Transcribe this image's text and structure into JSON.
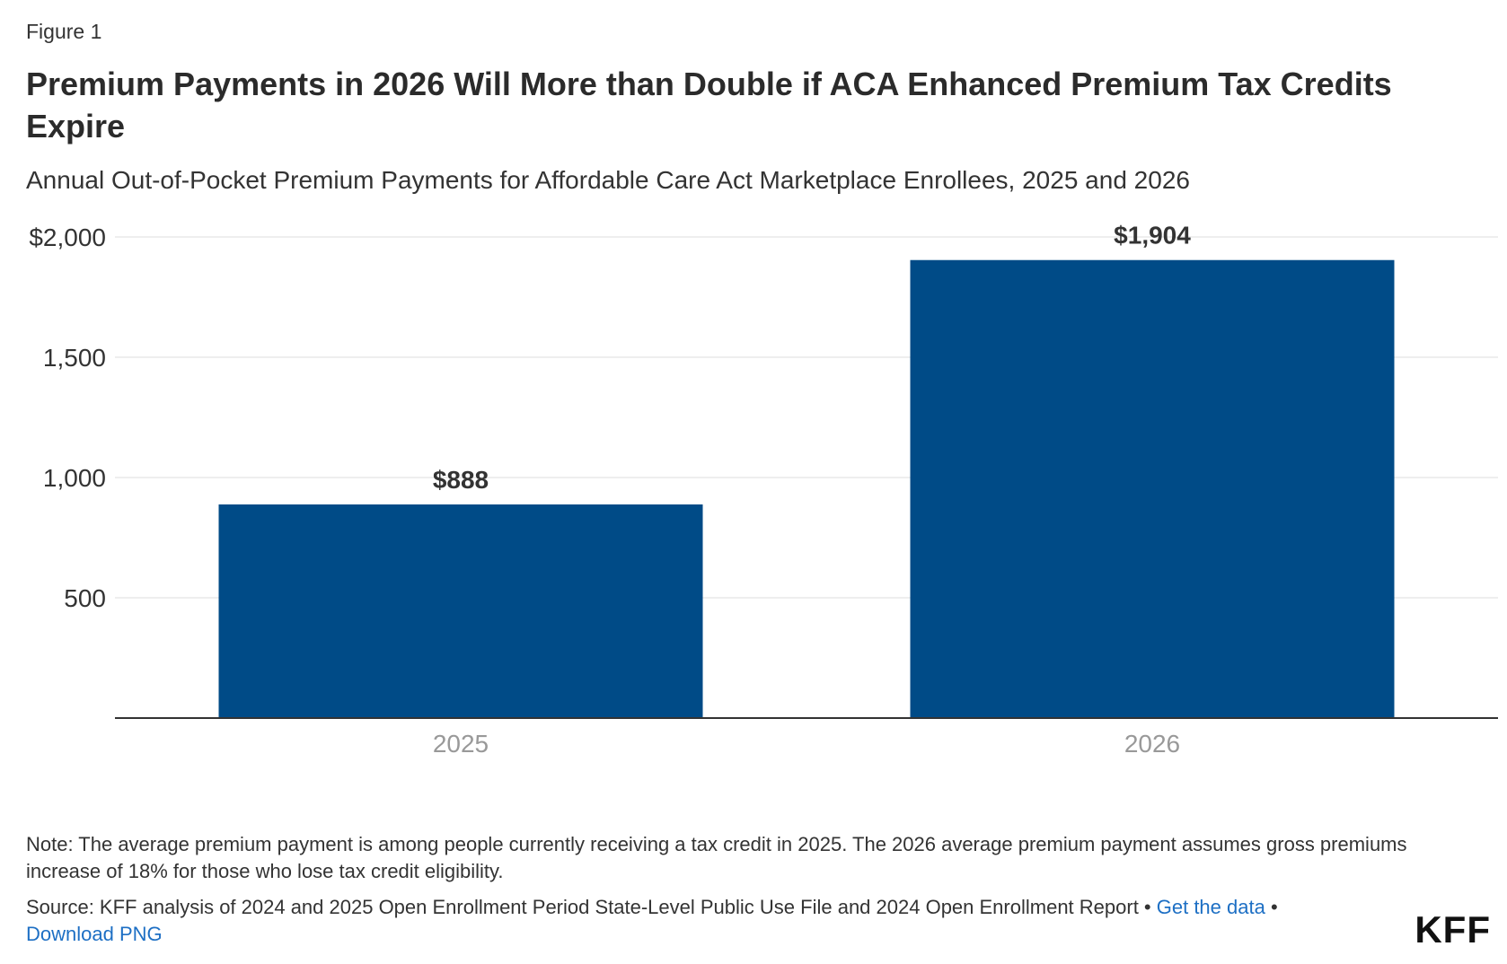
{
  "figure_label": "Figure 1",
  "title": "Premium Payments in 2026 Will More than Double if ACA Enhanced Premium Tax Credits Expire",
  "subtitle": "Annual Out-of-Pocket Premium Payments for Affordable Care Act Marketplace Enrollees, 2025 and 2026",
  "chart_data": {
    "type": "bar",
    "title": "Premium Payments in 2026 Will More than Double if ACA Enhanced Premium Tax Credits Expire",
    "subtitle": "Annual Out-of-Pocket Premium Payments for Affordable Care Act Marketplace Enrollees, 2025 and 2026",
    "categories": [
      "2025",
      "2026"
    ],
    "values": [
      888,
      1904
    ],
    "data_labels": [
      "$888",
      "$1,904"
    ],
    "xlabel": "",
    "ylabel": "",
    "ylim": [
      0,
      2000
    ],
    "y_ticks": [
      500,
      1000,
      1500,
      2000
    ],
    "y_tick_labels": [
      "500",
      "1,000",
      "1,500",
      "$2,000"
    ],
    "grid": true,
    "legend": "none",
    "bar_color": "#004b87",
    "grid_color": "#dddddd",
    "axis_color": "#333333"
  },
  "footer": {
    "note": "Note: The average premium payment is among people currently receiving a tax credit in 2025. The 2026 average premium payment assumes gross premiums increase of 18% for those who lose tax credit eligibility.",
    "source": "Source: KFF analysis of 2024 and 2025 Open Enrollment Period State-Level Public Use File and 2024 Open Enrollment Report",
    "separator": " • ",
    "get_data_link": "Get the data",
    "download_link": "Download PNG",
    "logo": "KFF"
  }
}
